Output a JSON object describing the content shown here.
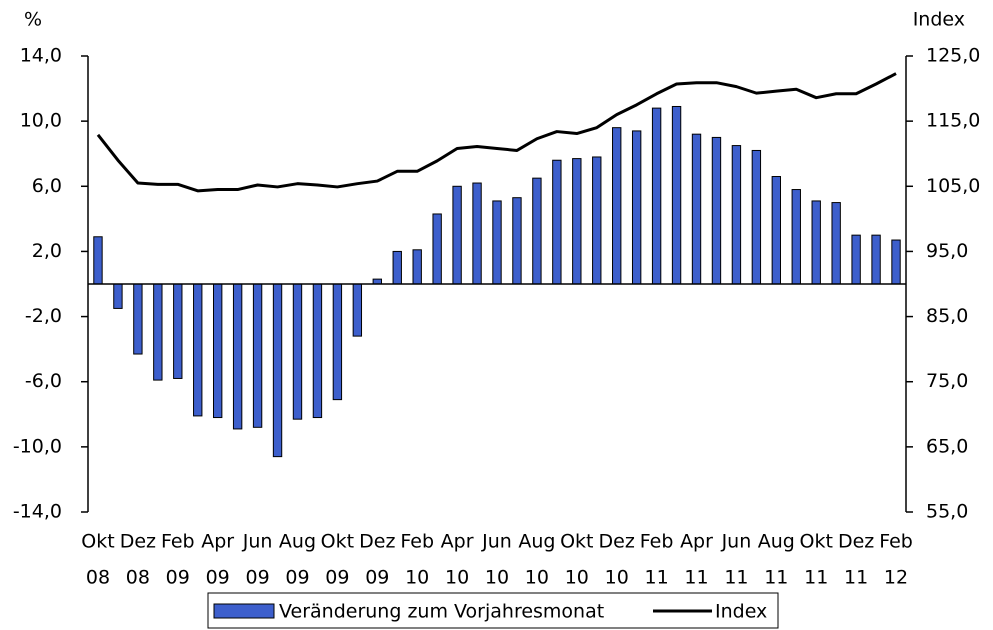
{
  "chart_data": {
    "type": "bar",
    "y_label": "%",
    "y2_label": "Index",
    "categories": [
      [
        "Okt",
        "08"
      ],
      null,
      [
        "Dez",
        "08"
      ],
      null,
      [
        "Feb",
        "09"
      ],
      null,
      [
        "Apr",
        "09"
      ],
      null,
      [
        "Jun",
        "09"
      ],
      null,
      [
        "Aug",
        "09"
      ],
      null,
      [
        "Okt",
        "09"
      ],
      null,
      [
        "Dez",
        "09"
      ],
      null,
      [
        "Feb",
        "10"
      ],
      null,
      [
        "Apr",
        "10"
      ],
      null,
      [
        "Jun",
        "10"
      ],
      null,
      [
        "Aug",
        "10"
      ],
      null,
      [
        "Okt",
        "10"
      ],
      null,
      [
        "Dez",
        "10"
      ],
      null,
      [
        "Feb",
        "11"
      ],
      null,
      [
        "Apr",
        "11"
      ],
      null,
      [
        "Jun",
        "11"
      ],
      null,
      [
        "Aug",
        "11"
      ],
      null,
      [
        "Okt",
        "11"
      ],
      null,
      [
        "Dez",
        "11"
      ],
      null,
      [
        "Feb",
        "12"
      ]
    ],
    "series": [
      {
        "name": "Veränderung zum Vorjahresmonat",
        "type": "bar",
        "color": "#3d5fcc",
        "values": [
          2.9,
          -1.5,
          -4.3,
          -5.9,
          -5.8,
          -8.1,
          -8.2,
          -8.9,
          -8.8,
          -10.6,
          -8.3,
          -8.2,
          -7.1,
          -3.2,
          0.3,
          2.0,
          2.1,
          4.3,
          6.0,
          6.2,
          5.1,
          5.3,
          6.5,
          7.6,
          7.7,
          7.8,
          9.6,
          9.4,
          10.8,
          10.9,
          9.2,
          9.0,
          8.5,
          8.2,
          6.6,
          5.8,
          5.1,
          5.0,
          3.0,
          3.0,
          2.7
        ]
      },
      {
        "name": "Index",
        "type": "line",
        "axis": "y2",
        "color": "#000000",
        "values": [
          112.9,
          109.0,
          105.5,
          105.3,
          105.3,
          104.3,
          104.5,
          104.5,
          105.2,
          104.9,
          105.4,
          105.2,
          104.9,
          105.4,
          105.8,
          107.3,
          107.3,
          108.9,
          110.8,
          111.1,
          110.8,
          110.5,
          112.3,
          113.4,
          113.1,
          114.0,
          116.0,
          117.5,
          119.2,
          120.7,
          120.9,
          120.9,
          120.3,
          119.3,
          119.6,
          119.9,
          118.6,
          119.2,
          119.2,
          120.7,
          122.3
        ]
      }
    ],
    "ylim": [
      -14,
      14
    ],
    "yticks": [
      {
        "value": -14,
        "label": "-14,0"
      },
      {
        "value": -10,
        "label": "-10,0"
      },
      {
        "value": -6,
        "label": "-6,0"
      },
      {
        "value": -2,
        "label": "-2,0"
      },
      {
        "value": 2,
        "label": "2,0"
      },
      {
        "value": 6,
        "label": "6,0"
      },
      {
        "value": 10,
        "label": "10,0"
      },
      {
        "value": 14,
        "label": "14,0"
      }
    ],
    "y2lim": [
      55,
      125
    ],
    "y2ticks": [
      {
        "value": 55,
        "label": "55,0"
      },
      {
        "value": 65,
        "label": "65,0"
      },
      {
        "value": 75,
        "label": "75,0"
      },
      {
        "value": 85,
        "label": "85,0"
      },
      {
        "value": 95,
        "label": "95,0"
      },
      {
        "value": 105,
        "label": "105,0"
      },
      {
        "value": 115,
        "label": "115,0"
      },
      {
        "value": 125,
        "label": "125,0"
      }
    ],
    "grid": false,
    "legend": "bottom"
  }
}
